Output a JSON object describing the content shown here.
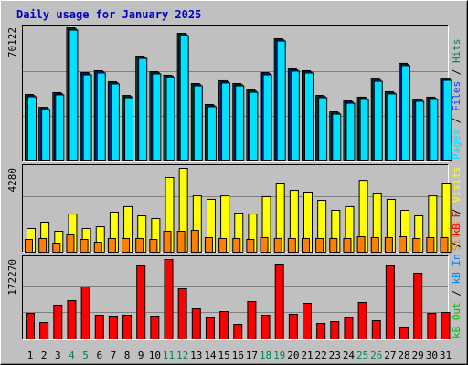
{
  "title": "Daily usage for January 2025",
  "chart_data": [
    {
      "type": "bar",
      "ylim": [
        0,
        70122
      ],
      "yticks": [
        70122
      ],
      "grid_divisions": 3,
      "series": [
        {
          "name": "Hits",
          "color": "#00805c",
          "values": [
            34800,
            28000,
            35800,
            70122,
            46400,
            47400,
            41600,
            34300,
            55100,
            46900,
            45000,
            67200,
            40600,
            29500,
            42100,
            40600,
            37200,
            46400,
            64300,
            48400,
            47400,
            34300,
            25600,
            31400,
            33400,
            43000,
            36300,
            51300,
            32400,
            33400,
            43500
          ]
        },
        {
          "name": "Files",
          "color": "#0040ff",
          "values": [
            34200,
            27400,
            35200,
            69500,
            45800,
            46800,
            41000,
            33700,
            54500,
            46300,
            44400,
            66600,
            40000,
            28900,
            41500,
            40000,
            36600,
            45800,
            63700,
            47800,
            46800,
            33700,
            25000,
            30800,
            32800,
            42400,
            35700,
            50700,
            31800,
            32800,
            42900
          ]
        },
        {
          "name": "Pages",
          "color": "#00e0ff",
          "values": [
            33600,
            26800,
            34600,
            68900,
            45200,
            46200,
            40400,
            33100,
            53900,
            45700,
            43800,
            66000,
            39400,
            28300,
            40900,
            39400,
            36000,
            45200,
            63100,
            47200,
            46200,
            33100,
            24400,
            30200,
            32200,
            41800,
            35100,
            50100,
            31200,
            32200,
            42300
          ]
        }
      ]
    },
    {
      "type": "bar",
      "ylim": [
        0,
        4280
      ],
      "yticks": [
        4280
      ],
      "grid_divisions": 3,
      "series": [
        {
          "name": "Visits",
          "color": "#ffff00",
          "values": [
            1210,
            1535,
            1070,
            1950,
            1210,
            1300,
            2050,
            2330,
            1860,
            1720,
            3815,
            4280,
            2880,
            2700,
            2880,
            2000,
            1950,
            2840,
            3490,
            3160,
            3070,
            2650,
            2140,
            2330,
            3670,
            2980,
            2700,
            2140,
            1860,
            2880,
            3490
          ]
        },
        {
          "name": "Sites",
          "color": "#ff8000",
          "values": [
            650,
            700,
            465,
            930,
            650,
            510,
            700,
            700,
            700,
            650,
            1070,
            1070,
            1115,
            745,
            700,
            700,
            650,
            745,
            700,
            700,
            700,
            700,
            700,
            700,
            790,
            745,
            745,
            790,
            700,
            745,
            745
          ]
        }
      ]
    },
    {
      "type": "bar",
      "ylim": [
        0,
        172270
      ],
      "yticks": [
        172270
      ],
      "grid_divisions": 3,
      "categories": [
        "1",
        "2",
        "3",
        "4",
        "5",
        "6",
        "7",
        "8",
        "9",
        "10",
        "11",
        "12",
        "13",
        "14",
        "15",
        "16",
        "17",
        "18",
        "19",
        "20",
        "21",
        "22",
        "23",
        "24",
        "25",
        "26",
        "27",
        "28",
        "29",
        "30",
        "31"
      ],
      "category_colors": [
        "#000000",
        "#000000",
        "#000000",
        "#00805c",
        "#00805c",
        "#000000",
        "#000000",
        "#000000",
        "#000000",
        "#000000",
        "#00805c",
        "#00805c",
        "#000000",
        "#000000",
        "#000000",
        "#000000",
        "#000000",
        "#00805c",
        "#00805c",
        "#000000",
        "#000000",
        "#000000",
        "#000000",
        "#000000",
        "#00805c",
        "#00805c",
        "#000000",
        "#000000",
        "#000000",
        "#000000",
        "#000000"
      ],
      "series": [
        {
          "name": "kB F",
          "color": "#ff0000",
          "values": [
            55400,
            35600,
            73300,
            83200,
            112900,
            51500,
            49500,
            51500,
            160400,
            49500,
            172270,
            108900,
            65300,
            47500,
            59400,
            31700,
            81200,
            51500,
            162400,
            53500,
            77200,
            33700,
            37600,
            47500,
            79200,
            39600,
            160400,
            25700,
            142600,
            55400,
            57400
          ]
        },
        {
          "name": "kB In",
          "color": "#0080ff",
          "values": [
            0,
            0,
            0,
            0,
            0,
            0,
            0,
            0,
            0,
            0,
            0,
            0,
            0,
            0,
            0,
            0,
            0,
            0,
            0,
            0,
            0,
            0,
            0,
            0,
            0,
            0,
            0,
            0,
            0,
            0,
            0
          ]
        },
        {
          "name": "kB Out",
          "color": "#00c000",
          "values": [
            0,
            0,
            0,
            0,
            0,
            0,
            0,
            0,
            0,
            0,
            0,
            0,
            0,
            0,
            0,
            0,
            0,
            0,
            0,
            0,
            0,
            0,
            0,
            0,
            0,
            0,
            0,
            0,
            0,
            0,
            0
          ]
        }
      ]
    }
  ]
}
